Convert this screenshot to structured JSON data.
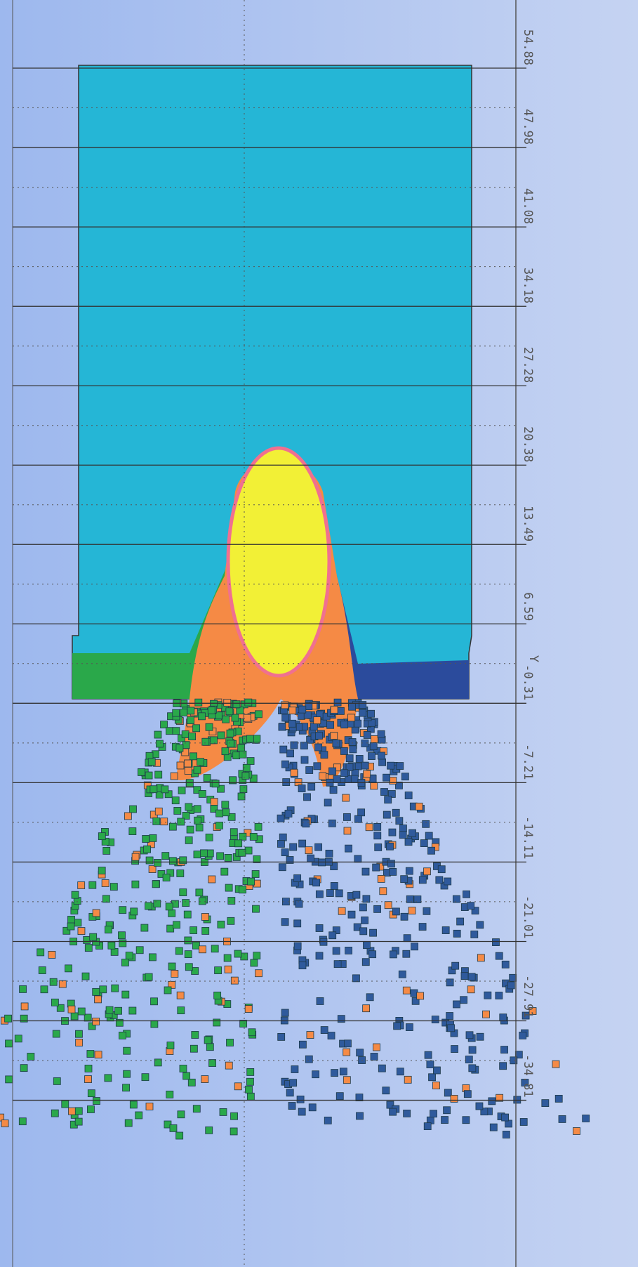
{
  "chart_data": {
    "type": "field",
    "y_label": "Y",
    "ylim": [
      -49.3,
      60.8
    ],
    "yticks": [
      54.88,
      47.98,
      41.08,
      34.18,
      27.28,
      20.38,
      13.49,
      6.59,
      -0.31,
      -7.21,
      -14.11,
      -21.01,
      -27.91,
      -34.81
    ],
    "grid": true
  }
}
